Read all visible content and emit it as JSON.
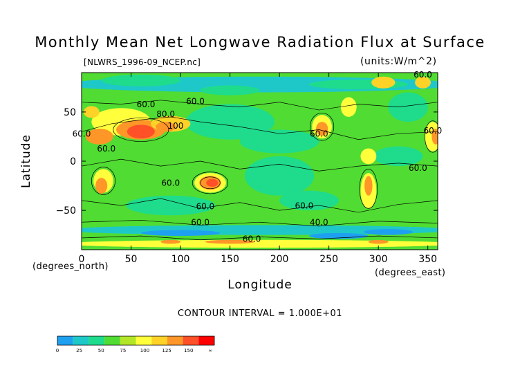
{
  "chart_data": {
    "type": "heatmap",
    "title": "Monthly Mean Net Longwave Radiation Flux at Surface",
    "source_label": "[NLWRS_1996-09_NCEP.nc]",
    "units_label": "(units:W/m^2)",
    "xlabel": "Longitude",
    "ylabel": "Latitude",
    "x_unit_label": "(degrees_east)",
    "y_unit_label": "(degrees_north)",
    "contour_interval_label": "CONTOUR INTERVAL = 1.000E+01",
    "xlim": [
      0,
      360
    ],
    "ylim": [
      -90,
      90
    ],
    "x_ticks": [
      0,
      50,
      100,
      150,
      200,
      250,
      300,
      350
    ],
    "y_ticks": [
      50,
      0,
      -50
    ],
    "contour_labels": [
      {
        "text": "60.0",
        "lon": 65,
        "lat": 55
      },
      {
        "text": "60.0",
        "lon": 115,
        "lat": 58
      },
      {
        "text": "80.0",
        "lon": 85,
        "lat": 45
      },
      {
        "text": "100",
        "lon": 95,
        "lat": 33
      },
      {
        "text": "60.0",
        "lon": 0,
        "lat": 25
      },
      {
        "text": "60.0",
        "lon": 25,
        "lat": 10
      },
      {
        "text": "60.0",
        "lon": 90,
        "lat": -25
      },
      {
        "text": "60.0",
        "lon": 125,
        "lat": -49
      },
      {
        "text": "60.0",
        "lon": 120,
        "lat": -65
      },
      {
        "text": "40.0",
        "lon": 240,
        "lat": -65
      },
      {
        "text": "60.0",
        "lon": 172,
        "lat": -82
      },
      {
        "text": "60.0",
        "lon": 240,
        "lat": 25
      },
      {
        "text": "60.0",
        "lon": 225,
        "lat": -48
      },
      {
        "text": "60.0",
        "lon": 345,
        "lat": 85
      },
      {
        "text": "60.0",
        "lon": 340,
        "lat": -10
      },
      {
        "text": "60.0",
        "lon": 355,
        "lat": 28
      }
    ],
    "colorbar": {
      "colors": [
        "#1ea0f0",
        "#1ec8c8",
        "#1edc8c",
        "#50dc32",
        "#b4e628",
        "#ffff3c",
        "#ffd228",
        "#ff9628",
        "#ff5028",
        "#ff0000"
      ],
      "tick_labels": [
        "0",
        "25",
        "50",
        "75",
        "100",
        "125",
        "150",
        "∞"
      ]
    },
    "colors": {
      "low": "#1ea0f0",
      "mid": "#50dc32",
      "high": "#ff0000",
      "contour_line": "#000000"
    }
  }
}
